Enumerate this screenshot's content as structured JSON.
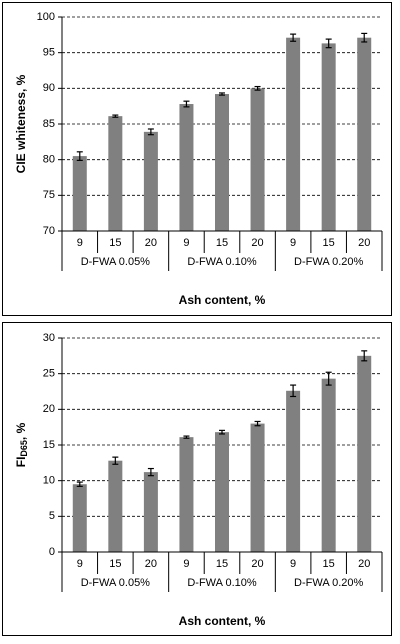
{
  "chart_data": [
    {
      "type": "bar",
      "ylabel": "CIE whiteness, %",
      "xlabel": "Ash content, %",
      "categories": [
        "9",
        "15",
        "20",
        "9",
        "15",
        "20",
        "9",
        "15",
        "20"
      ],
      "groups": [
        "D-FWA 0.05%",
        "D-FWA 0.10%",
        "D-FWA 0.20%"
      ],
      "series": [
        {
          "color": "#808080",
          "values": [
            80.5,
            86.1,
            83.9,
            87.8,
            89.2,
            90.0,
            97.1,
            96.3,
            97.1
          ],
          "errors": [
            0.6,
            0.15,
            0.4,
            0.4,
            0.15,
            0.25,
            0.5,
            0.6,
            0.6
          ]
        }
      ],
      "ylim": [
        70,
        100
      ],
      "yticks": [
        70,
        75,
        80,
        85,
        90,
        95,
        100
      ],
      "grid": true
    },
    {
      "type": "bar",
      "ylabel": "FI",
      "ylabel_sub": "D65",
      "ylabel_suffix": ", %",
      "xlabel": "Ash content, %",
      "categories": [
        "9",
        "15",
        "20",
        "9",
        "15",
        "20",
        "9",
        "15",
        "20"
      ],
      "groups": [
        "D-FWA 0.05%",
        "D-FWA 0.10%",
        "D-FWA 0.20%"
      ],
      "series": [
        {
          "color": "#808080",
          "values": [
            9.5,
            12.8,
            11.2,
            16.1,
            16.8,
            18.0,
            22.6,
            24.3,
            27.5
          ],
          "errors": [
            0.3,
            0.5,
            0.5,
            0.15,
            0.25,
            0.3,
            0.8,
            0.9,
            0.7
          ]
        }
      ],
      "ylim": [
        0,
        30
      ],
      "yticks": [
        0,
        5,
        10,
        15,
        20,
        25,
        30
      ],
      "grid": true
    }
  ]
}
